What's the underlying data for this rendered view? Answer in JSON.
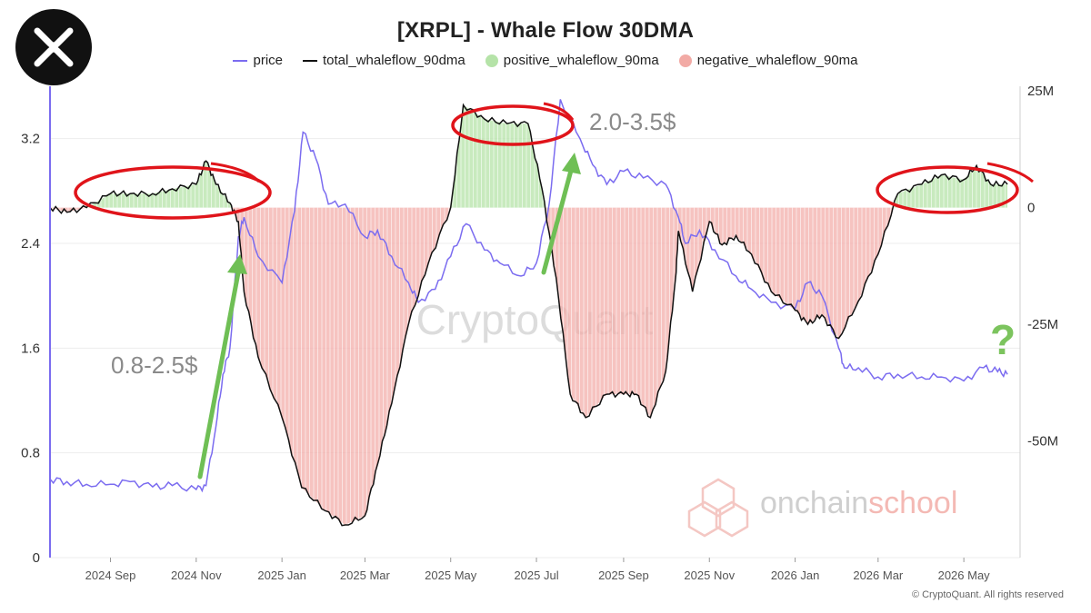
{
  "logo": {
    "icon": "xrp-logo-icon"
  },
  "title": "[XRPL] - Whale Flow 30DMA",
  "legend": [
    {
      "label": "price",
      "color": "#7b6cf0",
      "kind": "line"
    },
    {
      "label": "total_whaleflow_90dma",
      "color": "#111111",
      "kind": "line"
    },
    {
      "label": "positive_whaleflow_90ma",
      "color": "#b5e3a8",
      "kind": "dot"
    },
    {
      "label": "negative_whaleflow_90ma",
      "color": "#f2aaa5",
      "kind": "dot"
    }
  ],
  "watermark": "CryptoQuant",
  "brand": {
    "pre": "onchain",
    "post": "school"
  },
  "annotations": {
    "range1": "0.8-2.5$",
    "range2": "2.0-3.5$",
    "question": "?"
  },
  "copyright": "© CryptoQuant. All rights reserved",
  "chart_data": {
    "type": "line",
    "left_axis": {
      "ticks": [
        "0",
        "0.8",
        "1.6",
        "2.4",
        "3.2"
      ],
      "range": [
        0,
        3.6
      ]
    },
    "right_axis": {
      "ticks": [
        "25M",
        "0",
        "-25M",
        "-50M"
      ],
      "range": [
        -75,
        26
      ]
    },
    "x_ticks": [
      "2024 Sep",
      "2024 Nov",
      "2025 Jan",
      "2025 Mar",
      "2025 May",
      "2025 Jul",
      "2025 Sep",
      "2025 Nov",
      "2026 Jan",
      "2026 Mar",
      "2026 May"
    ],
    "x_range": [
      "2024-07-20",
      "2026-06-10"
    ],
    "series": [
      {
        "name": "price",
        "axis": "left",
        "color": "#7b6cf0",
        "x": [
          "2024-07-20",
          "2024-08-01",
          "2024-08-15",
          "2024-09-01",
          "2024-09-15",
          "2024-10-01",
          "2024-10-15",
          "2024-11-01",
          "2024-11-08",
          "2024-11-15",
          "2024-11-20",
          "2024-11-25",
          "2024-12-01",
          "2024-12-05",
          "2024-12-15",
          "2025-01-01",
          "2025-01-10",
          "2025-01-16",
          "2025-01-25",
          "2025-02-03",
          "2025-02-15",
          "2025-03-01",
          "2025-03-10",
          "2025-03-20",
          "2025-04-01",
          "2025-04-08",
          "2025-04-20",
          "2025-05-01",
          "2025-05-12",
          "2025-05-25",
          "2025-06-05",
          "2025-06-20",
          "2025-07-01",
          "2025-07-10",
          "2025-07-18",
          "2025-08-01",
          "2025-08-10",
          "2025-08-20",
          "2025-09-01",
          "2025-09-15",
          "2025-10-01",
          "2025-10-10",
          "2025-10-15",
          "2025-10-25",
          "2025-11-05",
          "2025-11-20",
          "2025-12-01",
          "2025-12-15",
          "2026-01-01",
          "2026-01-10",
          "2026-01-20",
          "2026-02-01",
          "2026-02-05",
          "2026-02-15",
          "2026-03-01",
          "2026-03-15",
          "2026-04-01",
          "2026-04-15",
          "2026-05-01",
          "2026-05-15",
          "2026-05-25",
          "2026-06-01"
        ],
        "values": [
          0.6,
          0.58,
          0.56,
          0.56,
          0.58,
          0.54,
          0.55,
          0.52,
          0.55,
          1.0,
          1.4,
          1.6,
          2.45,
          2.6,
          2.3,
          2.1,
          2.65,
          3.25,
          3.05,
          2.7,
          2.7,
          2.45,
          2.5,
          2.3,
          2.1,
          1.95,
          2.05,
          2.3,
          2.55,
          2.35,
          2.25,
          2.15,
          2.25,
          2.7,
          3.5,
          3.2,
          3.0,
          2.85,
          2.95,
          2.9,
          2.85,
          2.6,
          2.4,
          2.5,
          2.35,
          2.15,
          2.05,
          1.95,
          1.9,
          2.1,
          2.0,
          1.6,
          1.45,
          1.45,
          1.38,
          1.4,
          1.38,
          1.38,
          1.35,
          1.45,
          1.42,
          1.4
        ]
      },
      {
        "name": "total_whaleflow_90dma",
        "axis": "right",
        "color": "#111111",
        "x": [
          "2024-07-20",
          "2024-08-01",
          "2024-08-15",
          "2024-09-01",
          "2024-09-15",
          "2024-10-01",
          "2024-10-15",
          "2024-11-01",
          "2024-11-08",
          "2024-11-15",
          "2024-11-25",
          "2024-12-01",
          "2024-12-05",
          "2024-12-15",
          "2025-01-01",
          "2025-01-15",
          "2025-02-01",
          "2025-02-15",
          "2025-03-01",
          "2025-03-10",
          "2025-03-20",
          "2025-04-01",
          "2025-04-15",
          "2025-05-01",
          "2025-05-10",
          "2025-05-25",
          "2025-06-10",
          "2025-06-25",
          "2025-07-05",
          "2025-07-15",
          "2025-07-25",
          "2025-08-05",
          "2025-08-20",
          "2025-09-01",
          "2025-09-10",
          "2025-09-20",
          "2025-10-01",
          "2025-10-08",
          "2025-10-10",
          "2025-10-20",
          "2025-11-01",
          "2025-11-10",
          "2025-11-20",
          "2025-12-01",
          "2025-12-15",
          "2026-01-01",
          "2026-01-10",
          "2026-01-20",
          "2026-02-01",
          "2026-02-15",
          "2026-03-01",
          "2026-03-15",
          "2026-04-01",
          "2026-04-15",
          "2026-05-01",
          "2026-05-10",
          "2026-05-20",
          "2026-06-01"
        ],
        "values": [
          0,
          -1,
          0,
          3,
          3,
          3,
          4,
          5,
          10,
          5,
          1,
          -3,
          -18,
          -32,
          -45,
          -60,
          -65,
          -68,
          -66,
          -55,
          -42,
          -25,
          -12,
          0,
          22,
          19,
          18,
          18,
          4,
          -15,
          -40,
          -45,
          -40,
          -40,
          -40,
          -45,
          -35,
          -15,
          -5,
          -18,
          -3,
          -8,
          -6,
          -10,
          -18,
          -22,
          -25,
          -23,
          -28,
          -20,
          -10,
          3,
          5,
          7,
          6,
          9,
          5,
          5
        ]
      },
      {
        "name": "positive_whaleflow_90ma",
        "axis": "right",
        "color": "#b5e3a8",
        "fill": "positive part of total_whaleflow_90dma"
      },
      {
        "name": "negative_whaleflow_90ma",
        "axis": "right",
        "color": "#f2aaa5",
        "fill": "negative part of total_whaleflow_90dma"
      }
    ]
  }
}
